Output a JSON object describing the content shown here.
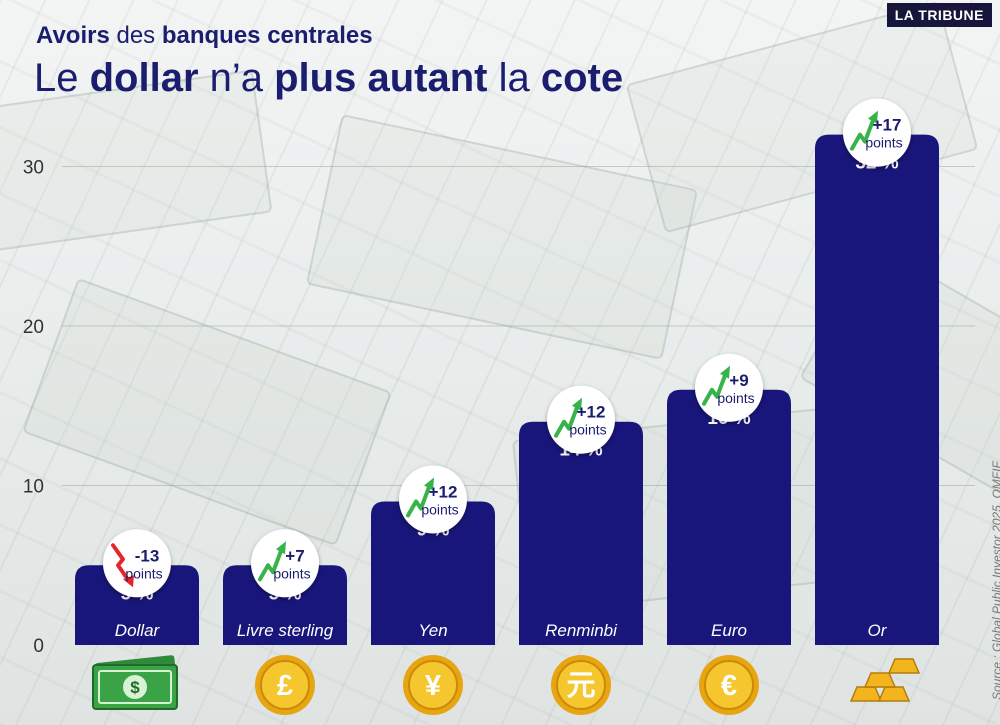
{
  "header": {
    "subtitle_bold_1": "Avoirs",
    "subtitle_mid": " des ",
    "subtitle_bold_2": "banques centrales",
    "title_1": "Le ",
    "title_bold_1": "dollar",
    "title_2": " n’a ",
    "title_bold_2": "plus autant",
    "title_3": " la ",
    "title_bold_3": "cote",
    "brand": "LA TRIBUNE"
  },
  "source": "Source : Global Public Investor 2025, OMFIF",
  "colors": {
    "bar": "#18167a",
    "title": "#1b1d6f",
    "up_arrow": "#37b34a",
    "down_arrow": "#e3262b"
  },
  "chart_data": {
    "type": "bar",
    "categories": [
      "Dollar",
      "Livre sterling",
      "Yen",
      "Renminbi",
      "Euro",
      "Or"
    ],
    "values": [
      5,
      5,
      9,
      14,
      16,
      32
    ],
    "value_labels": [
      "5 %",
      "5 %",
      "9 %",
      "14 %",
      "16 %",
      "32 %"
    ],
    "changes": [
      {
        "value": "-13",
        "unit": "points",
        "direction": "down"
      },
      {
        "value": "+7",
        "unit": "points",
        "direction": "up"
      },
      {
        "value": "+12",
        "unit": "points",
        "direction": "up"
      },
      {
        "value": "+12",
        "unit": "points",
        "direction": "up"
      },
      {
        "value": "+9",
        "unit": "points",
        "direction": "up"
      },
      {
        "value": "+17",
        "unit": "points",
        "direction": "up"
      }
    ],
    "icons": [
      "banknotes-icon",
      "pound-coin-icon",
      "yen-coin-icon",
      "yuan-coin-icon",
      "euro-coin-icon",
      "gold-bars-icon"
    ],
    "icon_glyphs": [
      "$",
      "£",
      "¥",
      "元",
      "€",
      ""
    ],
    "yticks": [
      0,
      10,
      20,
      30
    ],
    "ylim": [
      0,
      33
    ],
    "grid": true
  }
}
